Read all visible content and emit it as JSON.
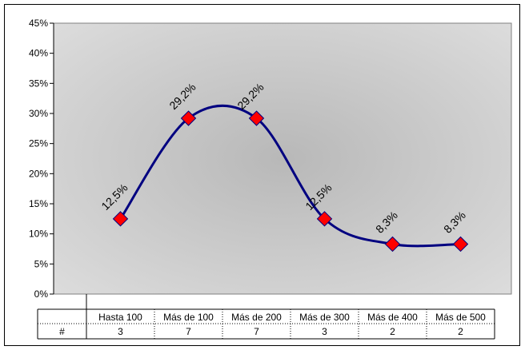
{
  "chart_data": {
    "type": "line",
    "categories": [
      "Hasta 100",
      "Más de 100",
      "Más de 200",
      "Más de 300",
      "Más de 400",
      "Más de 500"
    ],
    "series": [
      {
        "values": [
          12.5,
          29.2,
          29.2,
          12.5,
          8.3,
          8.3
        ],
        "labels": [
          "12,5%",
          "29,2%",
          "29,2%",
          "12,5%",
          "8,3%",
          "8,3%"
        ],
        "line_color": "#000080",
        "marker_color": "#FF0000",
        "marker": "diamond",
        "smooth": true
      }
    ],
    "ylim": [
      0,
      45
    ],
    "yticks": [
      "0%",
      "5%",
      "10%",
      "15%",
      "20%",
      "25%",
      "30%",
      "35%",
      "40%",
      "45%"
    ],
    "grid": false,
    "plot_background": "#C8C8C8",
    "data_table": {
      "row_header": "#",
      "counts": [
        "3",
        "7",
        "7",
        "3",
        "2",
        "2"
      ]
    },
    "title": "",
    "xlabel": "",
    "ylabel": ""
  }
}
